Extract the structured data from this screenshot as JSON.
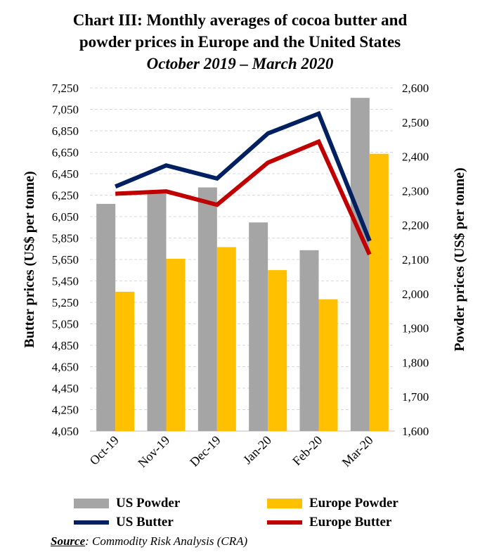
{
  "chart_data": {
    "type": "bar",
    "title": "Chart III: Monthly averages of cocoa butter and",
    "title_line2": "powder prices in Europe and the United States",
    "subtitle": "October 2019 – March 2020",
    "categories": [
      "Oct-19",
      "Nov-19",
      "Dec-19",
      "Jan-20",
      "Feb-20",
      "Mar-20"
    ],
    "ylabel": "Butter prices (US$ per tonne)",
    "y2label": "Powder prices (US$ per tonne)",
    "ylim": [
      4050,
      7250
    ],
    "y2lim": [
      1600,
      2600
    ],
    "yticks": [
      "7,250",
      "7,050",
      "6,850",
      "6,650",
      "6,450",
      "6,250",
      "6,050",
      "5,850",
      "5,650",
      "5,450",
      "5,250",
      "5,050",
      "4,850",
      "4,650",
      "4,450",
      "4,250",
      "4,050"
    ],
    "y2ticks": [
      "2,600",
      "2,500",
      "2,400",
      "2,300",
      "2,200",
      "2,100",
      "2,000",
      "1,900",
      "1,800",
      "1,700",
      "1,600"
    ],
    "grid": true,
    "legend_placement": "bottom",
    "series": [
      {
        "name": "US Powder",
        "kind": "bar",
        "axis": "right",
        "color": "#A5A5A5",
        "values": [
          2262,
          2292,
          2310,
          2208,
          2127,
          2571
        ]
      },
      {
        "name": "Europe Powder",
        "kind": "bar",
        "axis": "right",
        "color": "#FFC000",
        "values": [
          2006,
          2102,
          2136,
          2069,
          1984,
          2408
        ]
      },
      {
        "name": "US Butter",
        "kind": "line",
        "axis": "left",
        "color": "#002060",
        "values": [
          6330,
          6527,
          6405,
          6825,
          7010,
          5823
        ]
      },
      {
        "name": "Europe Butter",
        "kind": "line",
        "axis": "left",
        "color": "#C00000",
        "values": [
          6263,
          6285,
          6160,
          6553,
          6749,
          5697
        ]
      }
    ]
  },
  "source": {
    "label": "Source",
    "text": ": Commodity Risk Analysis (CRA)"
  }
}
